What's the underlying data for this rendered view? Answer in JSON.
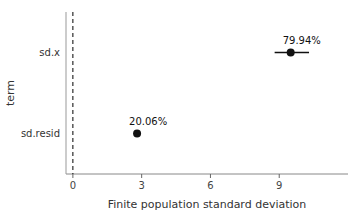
{
  "chart_data": {
    "type": "dot",
    "orientation": "horizontal",
    "categories": [
      "sd.x",
      "sd.resid"
    ],
    "values": [
      9.5,
      2.8
    ],
    "error_low": [
      8.8,
      2.8
    ],
    "error_high": [
      10.3,
      2.8
    ],
    "point_labels": [
      "79.94%",
      "20.06%"
    ],
    "xlabel": "Finite population standard deviation",
    "ylabel": "term",
    "xlim": [
      -0.3,
      12
    ],
    "xticks": [
      0,
      3,
      6,
      9
    ],
    "reference_line": 0,
    "color": "#111111",
    "grid": false
  }
}
